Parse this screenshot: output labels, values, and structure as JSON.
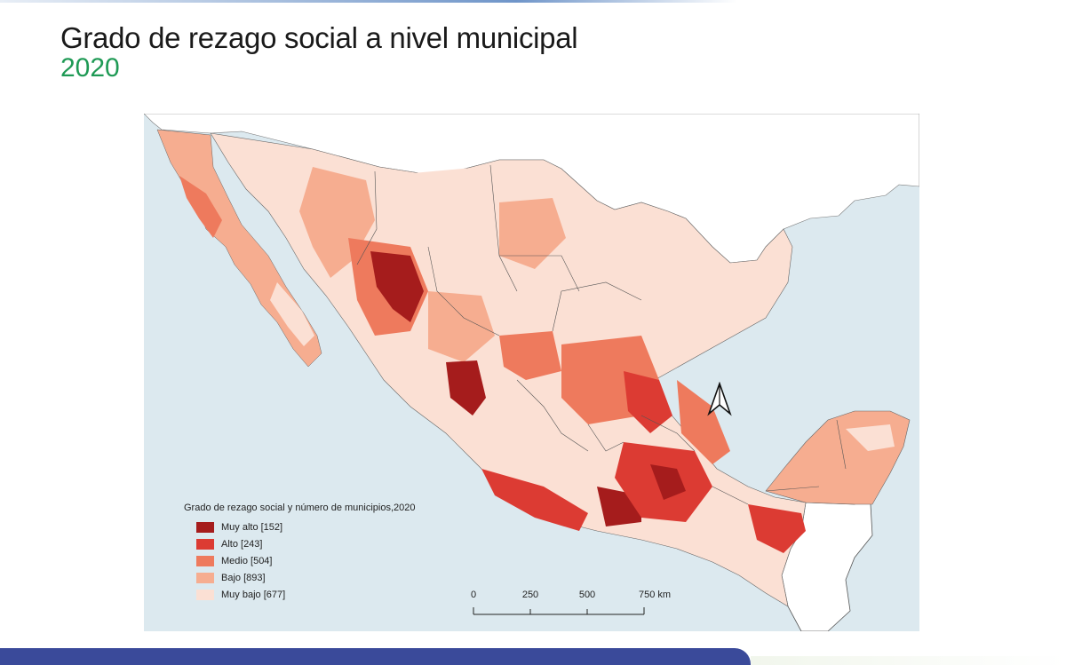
{
  "title": "Grado de rezago social a nivel municipal",
  "subtitle": "2020",
  "legend": {
    "title": "Grado de rezago social y número de municipios,2020",
    "items": [
      {
        "label": "Muy alto [152]",
        "color": "#a51c1c"
      },
      {
        "label": "Alto [243]",
        "color": "#dc3b33"
      },
      {
        "label": "Medio [504]",
        "color": "#ee7a5d"
      },
      {
        "label": "Bajo [893]",
        "color": "#f6ad90"
      },
      {
        "label": "Muy bajo [677]",
        "color": "#fbe0d4"
      }
    ]
  },
  "scale": {
    "ticks": [
      "0",
      "250",
      "500",
      "750 km"
    ]
  },
  "colors": {
    "ocean": "#dce9ef",
    "neighbor_land": "#ffffff",
    "title_accent": "#1f9a55",
    "bottom_bar": "#3a4a9a"
  },
  "north_arrow": "north-arrow-icon"
}
